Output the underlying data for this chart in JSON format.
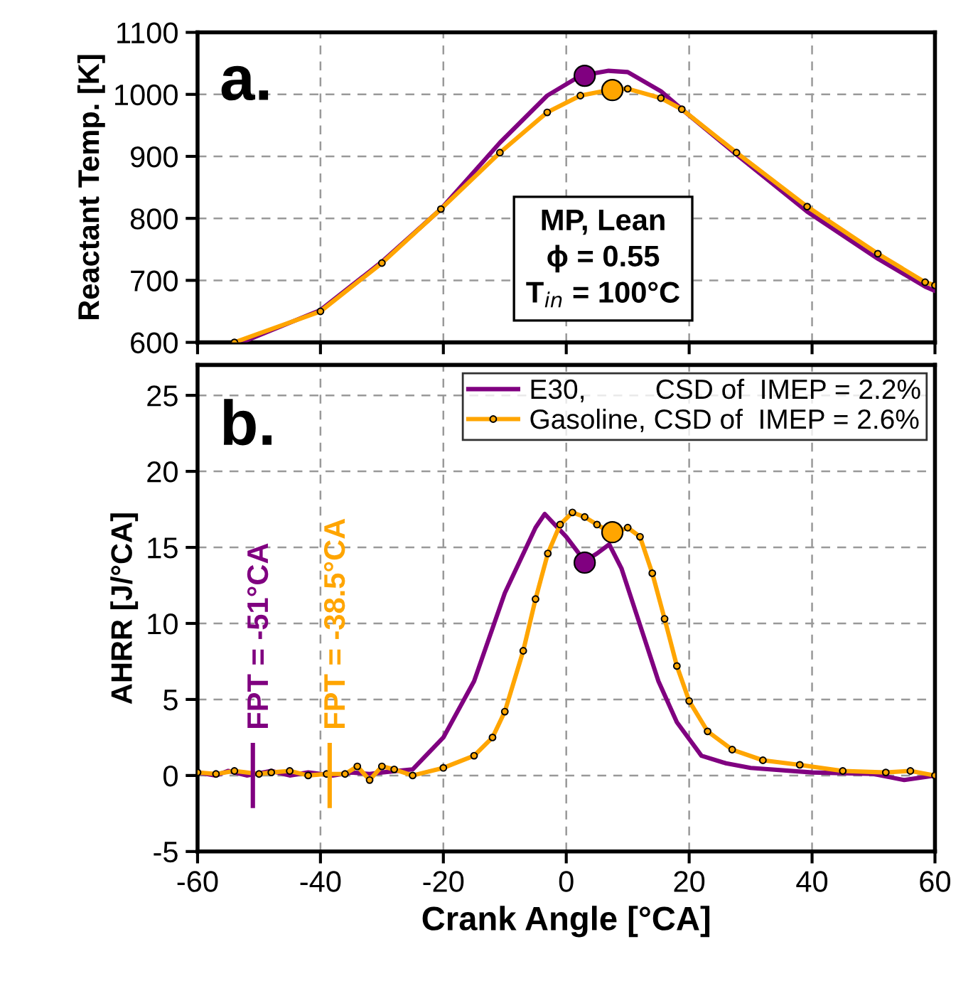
{
  "chart_data": [
    {
      "type": "line",
      "ylabel": "Reactant Temp. [K]",
      "xlim": [
        -60,
        60
      ],
      "xticks": [
        -60,
        -40,
        -20,
        0,
        20,
        40,
        60
      ],
      "ylim": [
        600,
        1100
      ],
      "yticks": [
        600,
        700,
        800,
        900,
        1000,
        1100
      ],
      "grid": true,
      "tick_labels": "y",
      "annotations": [
        "a.",
        "MP, Lean\nϕ = 0.55\nT$_{in}$ = 100°C"
      ],
      "series": [
        {
          "color": "#800080",
          "marker": "none",
          "x": [
            -52.8,
            -40,
            -30,
            -20.4,
            -10.8,
            -3.1,
            2.3,
            6.9,
            10,
            15.4,
            18.8,
            27.7,
            39.2,
            50.7,
            58.4,
            60
          ],
          "values": [
            600,
            652,
            730,
            815,
            922,
            998,
            1030,
            1038,
            1036,
            1005,
            976,
            903,
            811,
            735,
            690,
            683
          ]
        },
        {
          "color": "#ffa500",
          "marker": "circle",
          "x": [
            -54,
            -40,
            -30,
            -20.4,
            -10.8,
            -3.1,
            2.3,
            6.9,
            10,
            15.4,
            18.8,
            27.7,
            39.2,
            50.7,
            58.4,
            60
          ],
          "values": [
            600,
            650,
            728,
            815,
            906,
            971,
            998,
            1007,
            1009,
            994,
            976,
            906,
            819,
            743,
            697,
            692
          ]
        },
        {
          "type": "scatter",
          "color": "#800080",
          "marker": "circle",
          "x": [
            3
          ],
          "values": [
            1030
          ]
        },
        {
          "type": "scatter",
          "color": "#ffa500",
          "marker": "circle",
          "x": [
            7.5
          ],
          "values": [
            1007
          ]
        }
      ]
    },
    {
      "type": "line",
      "xlabel": "Crank Angle [°CA]",
      "ylabel": "AHRR [J/°CA]",
      "xlim": [
        -60,
        60
      ],
      "xticks": [
        -60,
        -40,
        -20,
        0,
        20,
        40,
        60
      ],
      "ylim": [
        -5,
        27
      ],
      "yticks": [
        -5,
        0,
        5,
        10,
        15,
        20,
        25
      ],
      "grid": true,
      "legend": "top right",
      "annotations": [
        "b.",
        {
          "text": "FPT = -51°CA",
          "x": -51,
          "y": 0
        },
        {
          "text": "FPT = -38.5°CA",
          "x": -38.5,
          "y": 0
        }
      ],
      "series": [
        {
          "name": "E30,         CSD of  IMEP = 2.2%",
          "color": "#800080",
          "marker": "none",
          "x": [
            -60,
            -57,
            -55,
            -52,
            -48,
            -45,
            -42,
            -38,
            -35,
            -32,
            -30,
            -25,
            -20,
            -15,
            -10,
            -5,
            -3.5,
            0,
            3,
            5,
            7,
            9,
            12,
            15,
            18,
            22,
            26,
            30,
            40,
            50,
            55,
            60
          ],
          "values": [
            0.2,
            0,
            0.3,
            0,
            0.3,
            0,
            0.2,
            0,
            0.2,
            0.1,
            0.2,
            0.4,
            2.5,
            6.2,
            12.0,
            16.3,
            17.2,
            15.7,
            14.1,
            14.6,
            15.2,
            13.6,
            9.9,
            6.2,
            3.5,
            1.3,
            0.8,
            0.5,
            0.2,
            0.1,
            -0.3,
            0
          ]
        },
        {
          "name": "Gasoline, CSD of  IMEP = 2.6%",
          "color": "#ffa500",
          "marker": "circle",
          "x": [
            -60,
            -57,
            -54,
            -50,
            -48,
            -45,
            -42,
            -39,
            -36,
            -34,
            -32,
            -30,
            -28,
            -25,
            -20,
            -15,
            -12,
            -10,
            -7,
            -5,
            -3,
            -1,
            1,
            3,
            5,
            7.5,
            10,
            12,
            14,
            16,
            18,
            20,
            23,
            27,
            32,
            38,
            45,
            52,
            56,
            60
          ],
          "values": [
            0.2,
            0.1,
            0.3,
            0.1,
            0.2,
            0.3,
            0,
            0.1,
            0.1,
            0.6,
            -0.3,
            0.6,
            0.4,
            0,
            0.5,
            1.3,
            2.5,
            4.2,
            8.2,
            11.6,
            14.6,
            16.5,
            17.3,
            17.0,
            16.5,
            15.9,
            16.3,
            15.7,
            13.3,
            10.3,
            7.2,
            4.9,
            2.9,
            1.7,
            1.0,
            0.7,
            0.3,
            0.2,
            0.3,
            0
          ]
        },
        {
          "type": "scatter",
          "color": "#800080",
          "marker": "circle",
          "x": [
            3
          ],
          "values": [
            14
          ]
        },
        {
          "type": "scatter",
          "color": "#ffa500",
          "marker": "circle",
          "x": [
            7.5
          ],
          "values": [
            16
          ]
        }
      ]
    }
  ]
}
